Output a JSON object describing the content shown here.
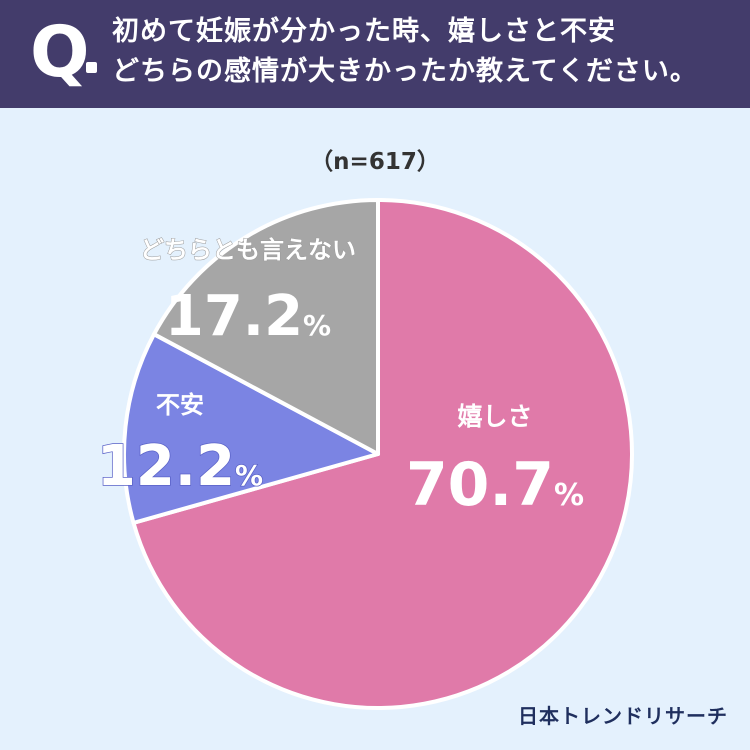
{
  "header": {
    "q_letter": "Q",
    "question_line1": "初めて妊娠が分かった時、嬉しさと不安",
    "question_line2": "どちらの感情が大きかったか教えてください。"
  },
  "sample_size": "（n=617）",
  "brand": "日本トレンドリサーチ",
  "colors": {
    "header_bg": "#433c6b",
    "background": "#e4f1fd",
    "happy": "#e07aa9",
    "anxious": "#7b84e3",
    "neither": "#a6a6a6"
  },
  "chart_data": {
    "type": "pie",
    "title": "",
    "slices": [
      {
        "label": "嬉しさ",
        "value": 70.7,
        "value_text": "70.7",
        "unit": "%",
        "color": "#e07aa9"
      },
      {
        "label": "不安",
        "value": 12.2,
        "value_text": "12.2",
        "unit": "%",
        "color": "#7b84e3"
      },
      {
        "label": "どちらとも言えない",
        "value": 17.2,
        "value_text": "17.2",
        "unit": "%",
        "color": "#a6a6a6"
      }
    ]
  }
}
